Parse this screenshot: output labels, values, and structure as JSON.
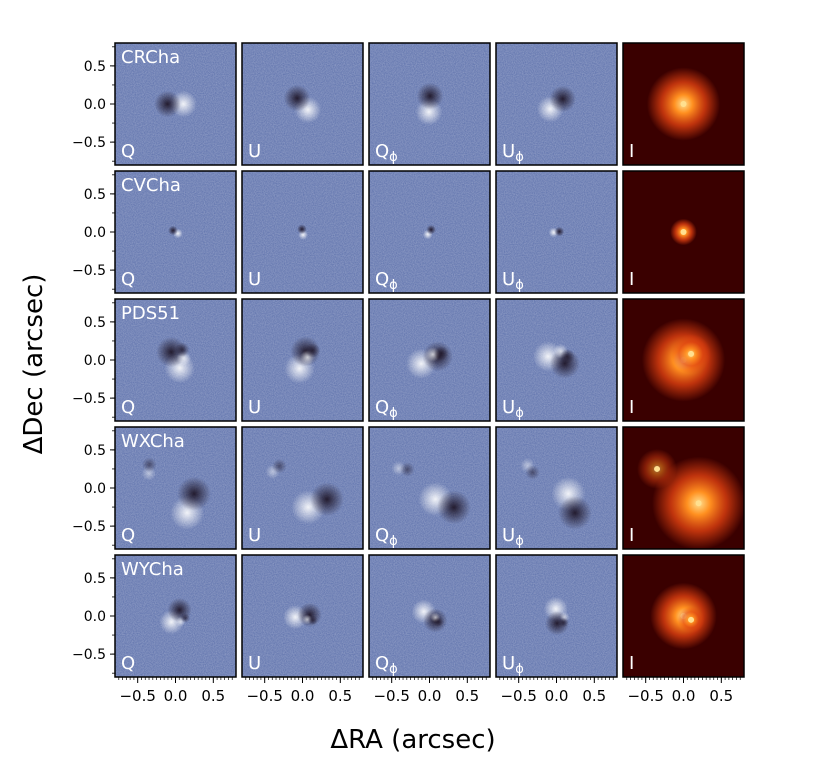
{
  "figure": {
    "xlabel": "ΔRA (arcsec)",
    "ylabel": "ΔDec (arcsec)"
  },
  "colors": {
    "pol_bg": "#5a6eaa",
    "pol_dark": "#1a1020",
    "pol_light": "#ffffff",
    "intensity_bg": "#3a0000",
    "intensity_mid": "#e04010",
    "intensity_peak": "#ffe090",
    "label_text": "#ffffff"
  },
  "chart_data": {
    "type": "heatmap",
    "layout": "image-grid",
    "xlim": [
      -0.8,
      0.8
    ],
    "ylim": [
      -0.8,
      0.8
    ],
    "x_ticks": [
      -0.5,
      0.0,
      0.5
    ],
    "x_tick_labels": [
      "−0.5",
      "0.0",
      "0.5"
    ],
    "y_ticks": [
      0.5,
      0.0,
      -0.5
    ],
    "y_tick_labels": [
      "0.5",
      "0.0",
      "−0.5"
    ],
    "columns": [
      "Q",
      "U",
      "Qφ",
      "Uφ",
      "I"
    ],
    "column_labels": [
      {
        "main": "Q",
        "sub": ""
      },
      {
        "main": "U",
        "sub": ""
      },
      {
        "main": "Q",
        "sub": "ϕ"
      },
      {
        "main": "U",
        "sub": "ϕ"
      },
      {
        "main": "I",
        "sub": ""
      }
    ],
    "rows": [
      {
        "name": "CRCha",
        "sources": [
          {
            "x": 0.0,
            "y": 0.0,
            "brightness": 1.0,
            "extent": 0.22
          }
        ]
      },
      {
        "name": "CVCha",
        "sources": [
          {
            "x": 0.0,
            "y": 0.0,
            "brightness": 1.0,
            "extent": 0.08
          }
        ]
      },
      {
        "name": "PDS51",
        "sources": [
          {
            "x": 0.0,
            "y": 0.0,
            "brightness": 1.0,
            "extent": 0.25
          },
          {
            "x": 0.1,
            "y": 0.08,
            "brightness": 0.8,
            "extent": 0.12
          }
        ]
      },
      {
        "name": "WXCha",
        "sources": [
          {
            "x": -0.35,
            "y": 0.25,
            "brightness": 0.55,
            "extent": 0.12
          },
          {
            "x": 0.2,
            "y": -0.2,
            "brightness": 1.0,
            "extent": 0.28
          }
        ]
      },
      {
        "name": "WYCha",
        "sources": [
          {
            "x": 0.0,
            "y": 0.0,
            "brightness": 1.0,
            "extent": 0.2
          },
          {
            "x": 0.1,
            "y": -0.05,
            "brightness": 0.7,
            "extent": 0.08
          }
        ]
      }
    ]
  }
}
